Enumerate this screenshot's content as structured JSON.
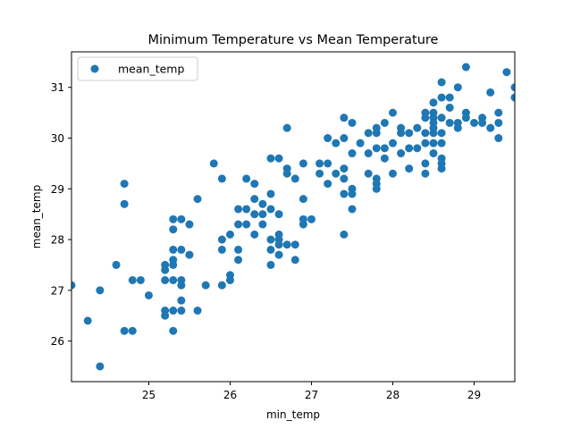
{
  "chart_data": {
    "type": "scatter",
    "title": "Minimum Temperature vs Mean Temperature",
    "xlabel": "min_temp",
    "ylabel": "mean_temp",
    "xlim": [
      24.05,
      29.5
    ],
    "ylim": [
      25.2,
      31.7
    ],
    "xticks": [
      25,
      26,
      27,
      28,
      29
    ],
    "yticks": [
      26,
      27,
      28,
      29,
      30,
      31
    ],
    "grid": false,
    "legend": {
      "position": "top-left",
      "entries": [
        "mean_temp"
      ]
    },
    "colors": {
      "series": "#1f77b4",
      "axes": "#000000",
      "background": "#ffffff"
    },
    "series": [
      {
        "name": "mean_temp",
        "points": [
          [
            24.05,
            27.1
          ],
          [
            24.25,
            26.4
          ],
          [
            24.4,
            27.0
          ],
          [
            24.4,
            25.5
          ],
          [
            24.6,
            27.5
          ],
          [
            24.7,
            29.1
          ],
          [
            24.7,
            28.7
          ],
          [
            24.7,
            26.2
          ],
          [
            24.8,
            27.2
          ],
          [
            24.8,
            26.2
          ],
          [
            24.9,
            27.2
          ],
          [
            25.0,
            26.9
          ],
          [
            25.2,
            27.5
          ],
          [
            25.2,
            27.4
          ],
          [
            25.2,
            27.2
          ],
          [
            25.2,
            26.6
          ],
          [
            25.2,
            26.5
          ],
          [
            25.3,
            28.4
          ],
          [
            25.3,
            28.2
          ],
          [
            25.3,
            27.8
          ],
          [
            25.3,
            27.6
          ],
          [
            25.3,
            27.5
          ],
          [
            25.3,
            27.2
          ],
          [
            25.3,
            26.6
          ],
          [
            25.3,
            26.2
          ],
          [
            25.4,
            28.4
          ],
          [
            25.4,
            27.8
          ],
          [
            25.4,
            27.2
          ],
          [
            25.4,
            27.1
          ],
          [
            25.4,
            26.8
          ],
          [
            25.4,
            26.6
          ],
          [
            25.5,
            28.3
          ],
          [
            25.5,
            27.7
          ],
          [
            25.6,
            28.8
          ],
          [
            25.6,
            26.6
          ],
          [
            25.7,
            27.1
          ],
          [
            25.8,
            29.5
          ],
          [
            25.9,
            29.2
          ],
          [
            25.9,
            28.0
          ],
          [
            25.9,
            27.8
          ],
          [
            25.9,
            27.1
          ],
          [
            26.0,
            28.1
          ],
          [
            26.0,
            27.3
          ],
          [
            26.0,
            27.2
          ],
          [
            26.1,
            28.6
          ],
          [
            26.1,
            28.3
          ],
          [
            26.1,
            27.8
          ],
          [
            26.1,
            27.6
          ],
          [
            26.2,
            29.2
          ],
          [
            26.2,
            28.6
          ],
          [
            26.2,
            28.3
          ],
          [
            26.3,
            29.1
          ],
          [
            26.3,
            28.8
          ],
          [
            26.3,
            28.5
          ],
          [
            26.3,
            28.1
          ],
          [
            26.4,
            28.7
          ],
          [
            26.4,
            28.5
          ],
          [
            26.4,
            28.3
          ],
          [
            26.5,
            29.6
          ],
          [
            26.5,
            28.9
          ],
          [
            26.5,
            28.6
          ],
          [
            26.5,
            28.0
          ],
          [
            26.5,
            27.8
          ],
          [
            26.5,
            27.5
          ],
          [
            26.6,
            29.6
          ],
          [
            26.6,
            28.5
          ],
          [
            26.6,
            28.1
          ],
          [
            26.6,
            28.0
          ],
          [
            26.6,
            27.9
          ],
          [
            26.6,
            27.7
          ],
          [
            26.7,
            30.2
          ],
          [
            26.7,
            29.4
          ],
          [
            26.7,
            29.3
          ],
          [
            26.7,
            27.9
          ],
          [
            26.8,
            29.2
          ],
          [
            26.8,
            27.9
          ],
          [
            26.8,
            27.6
          ],
          [
            26.9,
            29.5
          ],
          [
            26.9,
            28.8
          ],
          [
            26.9,
            28.4
          ],
          [
            26.9,
            28.3
          ],
          [
            27.0,
            28.4
          ],
          [
            27.1,
            29.5
          ],
          [
            27.1,
            29.3
          ],
          [
            27.2,
            30.0
          ],
          [
            27.2,
            29.5
          ],
          [
            27.2,
            29.1
          ],
          [
            27.3,
            29.9
          ],
          [
            27.3,
            29.3
          ],
          [
            27.4,
            30.4
          ],
          [
            27.4,
            30.0
          ],
          [
            27.4,
            29.4
          ],
          [
            27.4,
            29.2
          ],
          [
            27.4,
            28.9
          ],
          [
            27.4,
            28.1
          ],
          [
            27.5,
            30.3
          ],
          [
            27.5,
            29.7
          ],
          [
            27.5,
            29.0
          ],
          [
            27.5,
            28.9
          ],
          [
            27.5,
            28.6
          ],
          [
            27.6,
            29.9
          ],
          [
            27.7,
            30.1
          ],
          [
            27.7,
            29.7
          ],
          [
            27.7,
            29.3
          ],
          [
            27.8,
            30.2
          ],
          [
            27.8,
            30.1
          ],
          [
            27.8,
            29.8
          ],
          [
            27.8,
            29.2
          ],
          [
            27.8,
            29.1
          ],
          [
            27.8,
            29.0
          ],
          [
            27.9,
            30.3
          ],
          [
            27.9,
            29.8
          ],
          [
            27.9,
            29.6
          ],
          [
            28.0,
            30.5
          ],
          [
            28.0,
            29.9
          ],
          [
            28.0,
            29.3
          ],
          [
            28.1,
            30.2
          ],
          [
            28.1,
            30.1
          ],
          [
            28.1,
            29.7
          ],
          [
            28.2,
            30.1
          ],
          [
            28.2,
            29.8
          ],
          [
            28.2,
            29.4
          ],
          [
            28.3,
            30.2
          ],
          [
            28.3,
            29.8
          ],
          [
            28.4,
            30.5
          ],
          [
            28.4,
            30.4
          ],
          [
            28.4,
            30.1
          ],
          [
            28.4,
            29.9
          ],
          [
            28.4,
            29.5
          ],
          [
            28.4,
            29.3
          ],
          [
            28.5,
            30.7
          ],
          [
            28.5,
            30.5
          ],
          [
            28.5,
            30.4
          ],
          [
            28.5,
            30.3
          ],
          [
            28.5,
            30.2
          ],
          [
            28.5,
            30.1
          ],
          [
            28.5,
            29.9
          ],
          [
            28.5,
            29.7
          ],
          [
            28.6,
            31.1
          ],
          [
            28.6,
            30.8
          ],
          [
            28.6,
            30.4
          ],
          [
            28.6,
            30.1
          ],
          [
            28.6,
            29.9
          ],
          [
            28.6,
            29.6
          ],
          [
            28.6,
            29.5
          ],
          [
            28.6,
            29.4
          ],
          [
            28.7,
            30.8
          ],
          [
            28.7,
            30.6
          ],
          [
            28.7,
            30.3
          ],
          [
            28.8,
            31.0
          ],
          [
            28.8,
            30.3
          ],
          [
            28.8,
            30.2
          ],
          [
            28.9,
            31.4
          ],
          [
            28.9,
            30.5
          ],
          [
            28.9,
            30.4
          ],
          [
            29.0,
            30.3
          ],
          [
            29.1,
            30.4
          ],
          [
            29.1,
            30.3
          ],
          [
            29.2,
            30.9
          ],
          [
            29.2,
            30.2
          ],
          [
            29.3,
            30.5
          ],
          [
            29.3,
            30.3
          ],
          [
            29.3,
            30.0
          ],
          [
            29.4,
            31.3
          ],
          [
            29.5,
            31.0
          ],
          [
            29.5,
            30.8
          ]
        ]
      }
    ]
  }
}
